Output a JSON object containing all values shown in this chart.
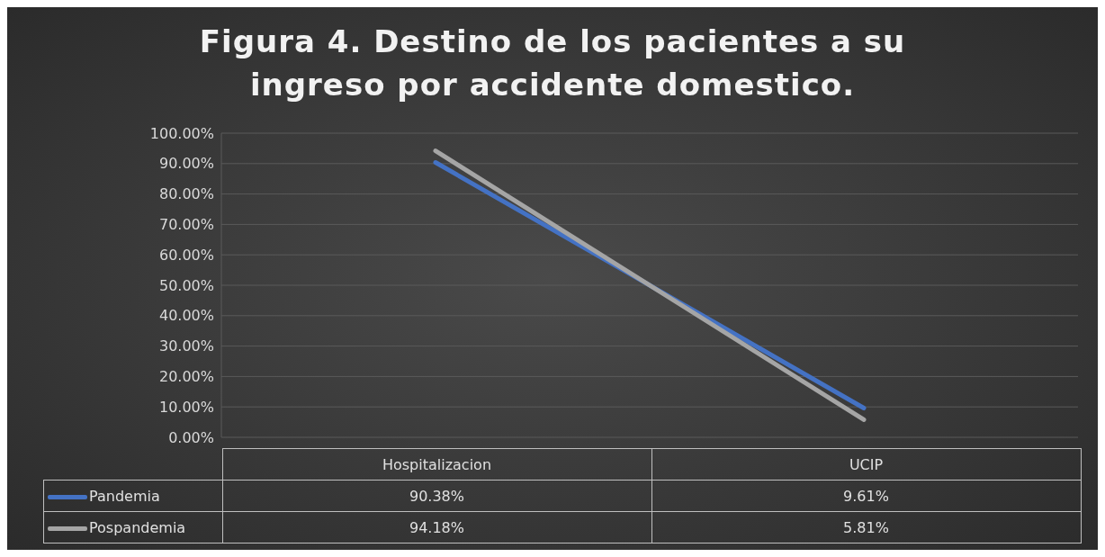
{
  "chart_data": {
    "type": "line",
    "title": "Figura 4. Destino de los pacientes a su ingreso por accidente domestico.",
    "categories": [
      "Hospitalizacion",
      "UCIP"
    ],
    "series": [
      {
        "name": "Pandemia",
        "color": "#4472c4",
        "values": [
          90.38,
          9.61
        ],
        "value_labels": [
          "90.38%",
          "9.61%"
        ]
      },
      {
        "name": "Pospandemia",
        "color": "#a5a5a5",
        "values": [
          94.18,
          5.81
        ],
        "value_labels": [
          "94.18%",
          "5.81%"
        ]
      }
    ],
    "ylim": [
      0,
      100
    ],
    "yticks": [
      {
        "value": 0,
        "label": "0.00%"
      },
      {
        "value": 10,
        "label": "10.00%"
      },
      {
        "value": 20,
        "label": "20.00%"
      },
      {
        "value": 30,
        "label": "30.00%"
      },
      {
        "value": 40,
        "label": "40.00%"
      },
      {
        "value": 50,
        "label": "50.00%"
      },
      {
        "value": 60,
        "label": "60.00%"
      },
      {
        "value": 70,
        "label": "70.00%"
      },
      {
        "value": 80,
        "label": "80.00%"
      },
      {
        "value": 90,
        "label": "90.00%"
      },
      {
        "value": 100,
        "label": "100.00%"
      }
    ],
    "grid": "y",
    "legend": "bottom",
    "marker": "none",
    "line_style": "solid"
  }
}
